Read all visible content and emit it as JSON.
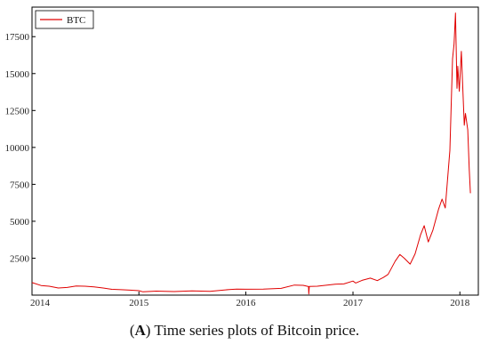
{
  "caption": {
    "label": "A",
    "text": " Time series plots of Bitcoin price."
  },
  "chart_data": {
    "type": "line",
    "title": "",
    "xlabel": "",
    "ylabel": "",
    "x_ticks": [
      "2014",
      "2015",
      "2016",
      "2017",
      "2018"
    ],
    "y_ticks": [
      2500,
      5000,
      7500,
      10000,
      12500,
      15000,
      17500
    ],
    "xlim": [
      "2014-01-01",
      "2018-03-05"
    ],
    "ylim": [
      0,
      19500
    ],
    "grid": false,
    "legend_position": "top-left",
    "series": [
      {
        "name": "BTC",
        "color": "#e00000",
        "x": [
          "2014-01-01",
          "2014-02-01",
          "2014-03-01",
          "2014-04-01",
          "2014-05-01",
          "2014-06-01",
          "2014-07-01",
          "2014-08-01",
          "2014-09-01",
          "2014-10-01",
          "2014-11-01",
          "2014-12-01",
          "2015-01-01",
          "2015-01-15",
          "2015-03-01",
          "2015-05-01",
          "2015-07-01",
          "2015-09-01",
          "2015-11-05",
          "2015-12-01",
          "2016-01-01",
          "2016-03-01",
          "2016-05-01",
          "2016-06-15",
          "2016-07-15",
          "2016-08-02",
          "2016-08-03",
          "2016-08-05",
          "2016-09-01",
          "2016-11-01",
          "2016-12-01",
          "2017-01-01",
          "2017-01-10",
          "2017-02-01",
          "2017-03-01",
          "2017-03-25",
          "2017-04-15",
          "2017-05-01",
          "2017-05-25",
          "2017-06-10",
          "2017-06-25",
          "2017-07-15",
          "2017-08-01",
          "2017-08-20",
          "2017-09-01",
          "2017-09-15",
          "2017-10-01",
          "2017-10-20",
          "2017-11-01",
          "2017-11-12",
          "2017-11-28",
          "2017-12-07",
          "2017-12-12",
          "2017-12-17",
          "2017-12-22",
          "2017-12-25",
          "2017-12-30",
          "2018-01-06",
          "2018-01-10",
          "2018-01-16",
          "2018-01-20",
          "2018-01-28",
          "2018-02-02",
          "2018-02-06"
        ],
        "y": [
          850,
          650,
          600,
          480,
          520,
          620,
          600,
          560,
          480,
          390,
          370,
          340,
          300,
          220,
          270,
          240,
          280,
          250,
          380,
          410,
          400,
          410,
          460,
          680,
          660,
          580,
          80,
          590,
          600,
          740,
          760,
          950,
          820,
          1000,
          1150,
          980,
          1200,
          1400,
          2300,
          2750,
          2500,
          2100,
          2800,
          4100,
          4700,
          3600,
          4400,
          5800,
          6500,
          5900,
          9800,
          16000,
          17000,
          19100,
          14000,
          15500,
          13800,
          16500,
          14500,
          11500,
          12300,
          11200,
          8500,
          6900
        ]
      }
    ]
  }
}
